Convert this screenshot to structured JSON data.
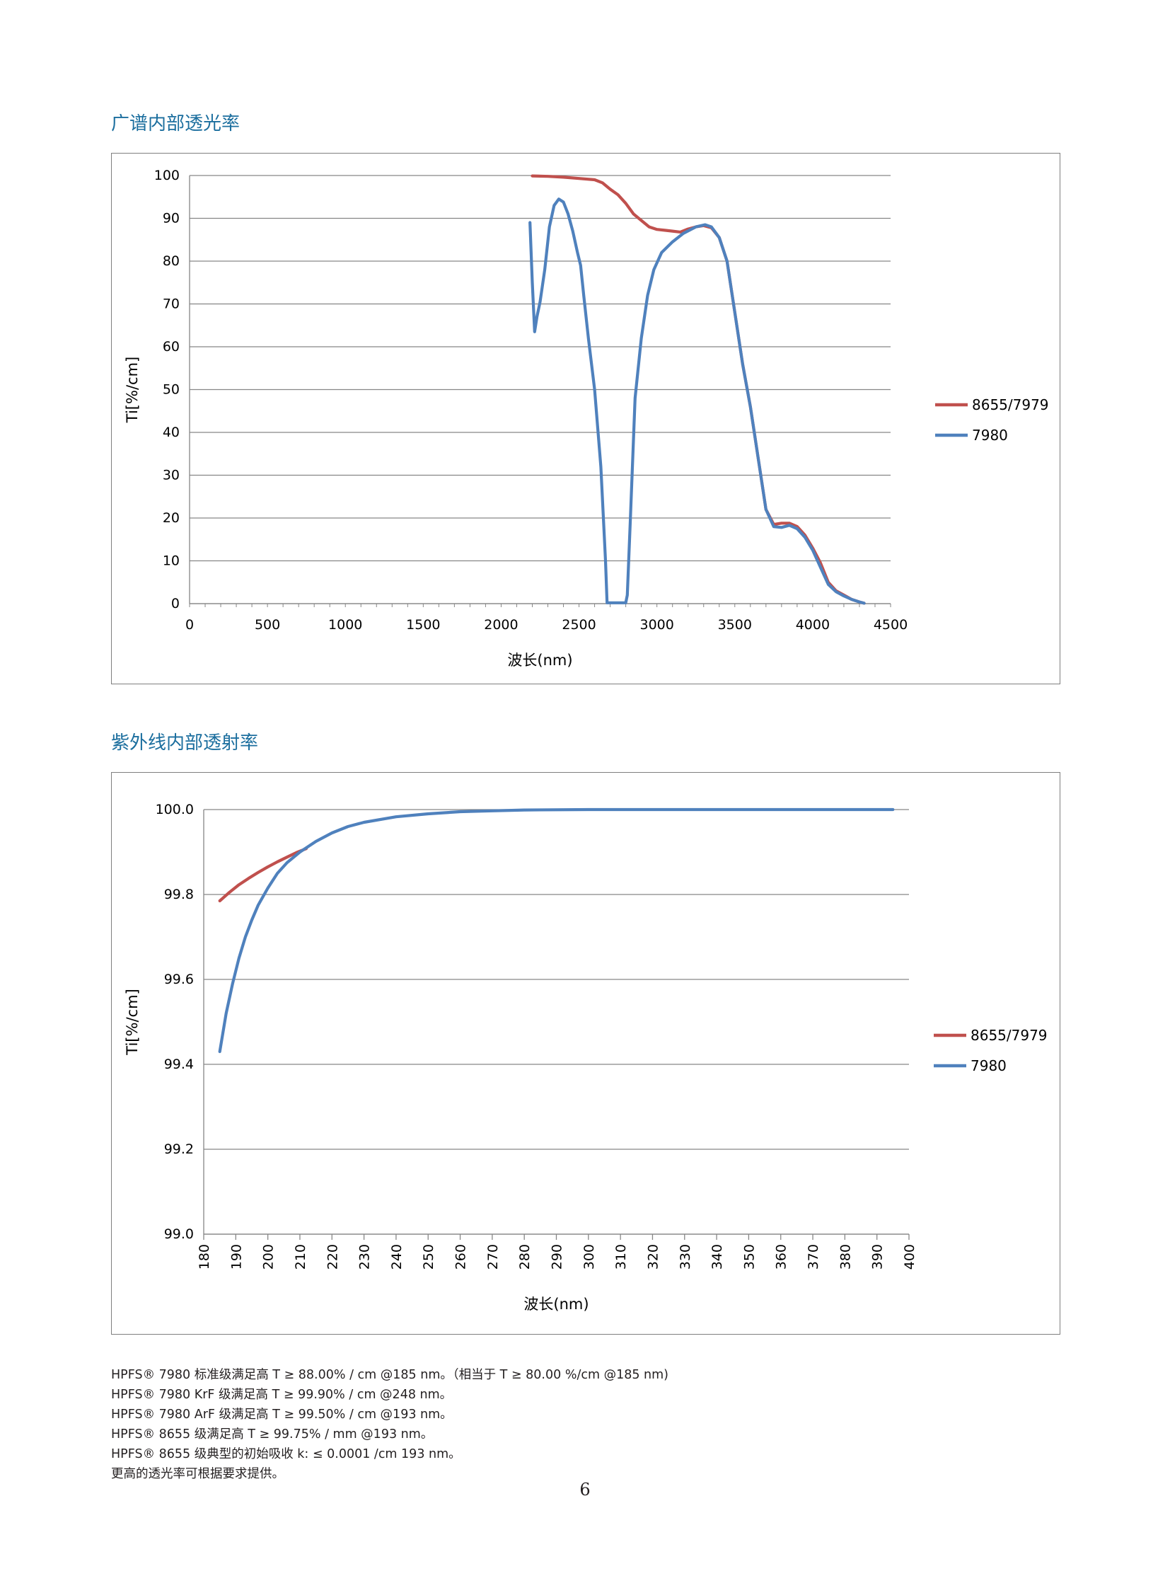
{
  "page": {
    "page_number": "6",
    "section1_title": "广谱内部透光率",
    "section2_title": "紫外线内部透射率",
    "notes": [
      "HPFS® 7980 标准级满足高 T ≥ 88.00% / cm @185 nm。（相当于 T ≥ 80.00 %/cm @185 nm)",
      "HPFS® 7980 KrF 级满足高 T ≥ 99.90% / cm @248 nm。",
      "HPFS® 7980 ArF 级满足高 T ≥ 99.50% / cm @193 nm。",
      "HPFS® 8655 级满足高 T ≥ 99.75% / mm @193 nm。",
      "HPFS® 8655 级典型的初始吸收 k: ≤ 0.0001 /cm 193 nm。",
      "更高的透光率可根据要求提供。"
    ]
  },
  "colors": {
    "title": "#1b6e9e",
    "series_red": "#c0504d",
    "series_blue": "#4f81bd",
    "grid": "#868686"
  },
  "chart_data": [
    {
      "type": "line",
      "xlabel": "波长(nm)",
      "ylabel": "Ti[%/cm]",
      "xlim": [
        0,
        4500
      ],
      "ylim": [
        0,
        100
      ],
      "x_ticks": [
        0,
        500,
        1000,
        1500,
        2000,
        2500,
        3000,
        3500,
        4000,
        4500
      ],
      "y_ticks": [
        0,
        10,
        20,
        30,
        40,
        50,
        60,
        70,
        80,
        90,
        100
      ],
      "grid": true,
      "legend_position": "right",
      "series": [
        {
          "name": "8655/7979",
          "color": "#c0504d",
          "points": [
            [
              2200,
              99.9
            ],
            [
              2300,
              99.8
            ],
            [
              2400,
              99.6
            ],
            [
              2500,
              99.3
            ],
            [
              2600,
              99.0
            ],
            [
              2650,
              98.3
            ],
            [
              2700,
              96.8
            ],
            [
              2750,
              95.5
            ],
            [
              2800,
              93.5
            ],
            [
              2850,
              91.0
            ],
            [
              2900,
              89.5
            ],
            [
              2950,
              88.0
            ],
            [
              3000,
              87.4
            ],
            [
              3050,
              87.2
            ],
            [
              3100,
              87.0
            ],
            [
              3150,
              86.8
            ],
            [
              3200,
              87.5
            ],
            [
              3250,
              88.0
            ],
            [
              3300,
              88.3
            ],
            [
              3350,
              87.8
            ],
            [
              3400,
              85.5
            ],
            [
              3450,
              80.0
            ],
            [
              3500,
              68.0
            ],
            [
              3550,
              56.0
            ],
            [
              3600,
              46.0
            ],
            [
              3650,
              34.0
            ],
            [
              3700,
              22.0
            ],
            [
              3750,
              18.5
            ],
            [
              3800,
              18.8
            ],
            [
              3850,
              18.8
            ],
            [
              3900,
              18.0
            ],
            [
              3950,
              16.0
            ],
            [
              4000,
              13.0
            ],
            [
              4050,
              9.5
            ],
            [
              4100,
              5.0
            ],
            [
              4150,
              3.0
            ],
            [
              4200,
              2.0
            ],
            [
              4250,
              1.0
            ],
            [
              4300,
              0.4
            ],
            [
              4330,
              0.1
            ]
          ]
        },
        {
          "name": "7980",
          "color": "#4f81bd",
          "points": [
            [
              2185,
              89.0
            ],
            [
              2200,
              75.0
            ],
            [
              2215,
              63.5
            ],
            [
              2230,
              67.0
            ],
            [
              2250,
              70.5
            ],
            [
              2280,
              78.0
            ],
            [
              2310,
              88.0
            ],
            [
              2340,
              93.0
            ],
            [
              2370,
              94.5
            ],
            [
              2400,
              93.8
            ],
            [
              2430,
              91.0
            ],
            [
              2460,
              87.0
            ],
            [
              2490,
              82.0
            ],
            [
              2510,
              79.0
            ],
            [
              2530,
              72.0
            ],
            [
              2560,
              62.0
            ],
            [
              2600,
              50.0
            ],
            [
              2640,
              32.0
            ],
            [
              2670,
              10.0
            ],
            [
              2680,
              0.2
            ],
            [
              2800,
              0.2
            ],
            [
              2810,
              2.0
            ],
            [
              2830,
              20.0
            ],
            [
              2860,
              48.0
            ],
            [
              2900,
              62.0
            ],
            [
              2940,
              72.0
            ],
            [
              2980,
              78.0
            ],
            [
              3030,
              82.0
            ],
            [
              3100,
              84.5
            ],
            [
              3170,
              86.5
            ],
            [
              3250,
              88.0
            ],
            [
              3310,
              88.5
            ],
            [
              3350,
              88.0
            ],
            [
              3400,
              85.5
            ],
            [
              3450,
              80.0
            ],
            [
              3500,
              68.0
            ],
            [
              3550,
              56.0
            ],
            [
              3600,
              46.0
            ],
            [
              3650,
              34.0
            ],
            [
              3700,
              22.0
            ],
            [
              3750,
              18.0
            ],
            [
              3800,
              17.8
            ],
            [
              3850,
              18.3
            ],
            [
              3900,
              17.5
            ],
            [
              3950,
              15.5
            ],
            [
              4000,
              12.5
            ],
            [
              4050,
              8.5
            ],
            [
              4100,
              4.5
            ],
            [
              4150,
              2.8
            ],
            [
              4200,
              1.8
            ],
            [
              4250,
              1.0
            ],
            [
              4300,
              0.4
            ],
            [
              4330,
              0.1
            ]
          ]
        }
      ]
    },
    {
      "type": "line",
      "xlabel": "波长(nm)",
      "ylabel": "Ti[%/cm]",
      "xlim": [
        180,
        400
      ],
      "ylim": [
        99.0,
        100.0
      ],
      "x_ticks": [
        180,
        190,
        200,
        210,
        220,
        230,
        240,
        250,
        260,
        270,
        280,
        290,
        300,
        310,
        320,
        330,
        340,
        350,
        360,
        370,
        380,
        390,
        400
      ],
      "y_ticks": [
        "99.0",
        "99.2",
        "99.4",
        "99.6",
        "99.8",
        "100.0"
      ],
      "grid": true,
      "legend_position": "right",
      "series": [
        {
          "name": "8655/7979",
          "color": "#c0504d",
          "points": [
            [
              185,
              99.785
            ],
            [
              188,
              99.805
            ],
            [
              191,
              99.823
            ],
            [
              194,
              99.838
            ],
            [
              197,
              99.852
            ],
            [
              200,
              99.865
            ],
            [
              203,
              99.877
            ],
            [
              206,
              99.888
            ],
            [
              209,
              99.899
            ],
            [
              212,
              99.908
            ]
          ]
        },
        {
          "name": "7980",
          "color": "#4f81bd",
          "points": [
            [
              185,
              99.43
            ],
            [
              187,
              99.52
            ],
            [
              189,
              99.59
            ],
            [
              191,
              99.65
            ],
            [
              193,
              99.7
            ],
            [
              195,
              99.74
            ],
            [
              197,
              99.775
            ],
            [
              200,
              99.815
            ],
            [
              203,
              99.85
            ],
            [
              206,
              99.875
            ],
            [
              210,
              99.9
            ],
            [
              215,
              99.925
            ],
            [
              220,
              99.945
            ],
            [
              225,
              99.96
            ],
            [
              230,
              99.97
            ],
            [
              240,
              99.983
            ],
            [
              250,
              99.99
            ],
            [
              260,
              99.995
            ],
            [
              270,
              99.997
            ],
            [
              280,
              99.999
            ],
            [
              300,
              100.0
            ],
            [
              320,
              100.0
            ],
            [
              340,
              100.0
            ],
            [
              360,
              100.0
            ],
            [
              380,
              100.0
            ],
            [
              395,
              100.0
            ]
          ]
        }
      ]
    }
  ]
}
